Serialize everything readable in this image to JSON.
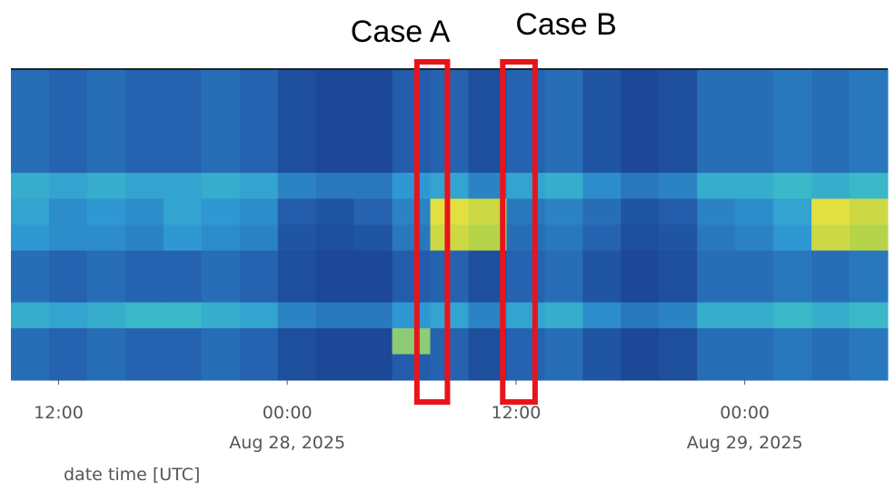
{
  "chart_data": {
    "type": "heatmap",
    "xlabel": "date time [UTC]",
    "xlim": [
      -14.5,
      31.5
    ],
    "xticks": [
      {
        "value": -12,
        "label": [
          "12:00"
        ]
      },
      {
        "value": 0,
        "label": [
          "00:00",
          "Aug 28, 2025"
        ]
      },
      {
        "value": 12,
        "label": [
          "12:00"
        ]
      },
      {
        "value": 24,
        "label": [
          "00:00",
          "Aug 29, 2025"
        ]
      }
    ],
    "xbins": [
      -14.5,
      -12.5,
      -10.5,
      -8.5,
      -6.5,
      -4.5,
      -2.5,
      -0.5,
      1.5,
      3.5,
      5.5,
      7.5,
      9.5,
      11.5,
      13.5,
      15.5,
      17.5,
      19.5,
      21.5,
      23.5,
      25.5,
      27.5,
      29.5,
      31.5
    ],
    "z": [
      [
        0.35,
        0.3,
        0.35,
        0.3,
        0.3,
        0.35,
        0.3,
        0.15,
        0.1,
        0.1,
        0.25,
        0.3,
        0.15,
        0.3,
        0.35,
        0.2,
        0.1,
        0.15,
        0.35,
        0.35,
        0.4,
        0.35,
        0.4
      ],
      [
        0.35,
        0.3,
        0.35,
        0.3,
        0.3,
        0.35,
        0.3,
        0.15,
        0.1,
        0.1,
        0.25,
        0.3,
        0.15,
        0.3,
        0.35,
        0.2,
        0.1,
        0.15,
        0.35,
        0.35,
        0.4,
        0.35,
        0.4
      ],
      [
        0.35,
        0.3,
        0.35,
        0.3,
        0.3,
        0.35,
        0.3,
        0.15,
        0.1,
        0.1,
        0.25,
        0.3,
        0.15,
        0.3,
        0.35,
        0.2,
        0.1,
        0.15,
        0.35,
        0.35,
        0.4,
        0.35,
        0.4
      ],
      [
        0.35,
        0.3,
        0.35,
        0.3,
        0.3,
        0.35,
        0.3,
        0.15,
        0.1,
        0.1,
        0.25,
        0.3,
        0.15,
        0.3,
        0.35,
        0.2,
        0.1,
        0.15,
        0.35,
        0.35,
        0.4,
        0.35,
        0.4
      ],
      [
        0.65,
        0.6,
        0.65,
        0.6,
        0.6,
        0.65,
        0.6,
        0.45,
        0.4,
        0.4,
        0.55,
        0.6,
        0.45,
        0.6,
        0.65,
        0.5,
        0.4,
        0.45,
        0.65,
        0.65,
        0.7,
        0.65,
        0.7
      ],
      [
        0.6,
        0.5,
        0.55,
        0.5,
        0.6,
        0.55,
        0.5,
        0.25,
        0.2,
        0.3,
        0.45,
        0.95,
        0.9,
        0.4,
        0.45,
        0.35,
        0.2,
        0.25,
        0.45,
        0.5,
        0.6,
        0.95,
        0.9
      ],
      [
        0.55,
        0.5,
        0.5,
        0.45,
        0.55,
        0.5,
        0.45,
        0.2,
        0.15,
        0.2,
        0.4,
        0.9,
        0.85,
        0.35,
        0.4,
        0.3,
        0.15,
        0.2,
        0.4,
        0.45,
        0.55,
        0.9,
        0.85
      ],
      [
        0.35,
        0.3,
        0.35,
        0.3,
        0.3,
        0.35,
        0.3,
        0.15,
        0.1,
        0.1,
        0.25,
        0.3,
        0.15,
        0.3,
        0.35,
        0.2,
        0.1,
        0.15,
        0.35,
        0.35,
        0.4,
        0.35,
        0.4
      ],
      [
        0.35,
        0.3,
        0.35,
        0.3,
        0.3,
        0.35,
        0.3,
        0.15,
        0.1,
        0.1,
        0.25,
        0.3,
        0.15,
        0.3,
        0.35,
        0.2,
        0.1,
        0.15,
        0.35,
        0.35,
        0.4,
        0.35,
        0.4
      ],
      [
        0.65,
        0.6,
        0.65,
        0.7,
        0.7,
        0.65,
        0.6,
        0.45,
        0.4,
        0.4,
        0.55,
        0.6,
        0.45,
        0.6,
        0.65,
        0.5,
        0.4,
        0.45,
        0.65,
        0.65,
        0.7,
        0.65,
        0.7
      ],
      [
        0.35,
        0.3,
        0.35,
        0.3,
        0.3,
        0.35,
        0.3,
        0.15,
        0.1,
        0.1,
        0.8,
        0.3,
        0.15,
        0.3,
        0.35,
        0.2,
        0.1,
        0.15,
        0.35,
        0.35,
        0.4,
        0.35,
        0.4
      ],
      [
        0.35,
        0.3,
        0.35,
        0.3,
        0.3,
        0.35,
        0.3,
        0.15,
        0.1,
        0.1,
        0.25,
        0.3,
        0.15,
        0.3,
        0.35,
        0.2,
        0.1,
        0.15,
        0.35,
        0.35,
        0.4,
        0.35,
        0.4
      ]
    ],
    "annotations": [
      {
        "text": "Case A",
        "x": [
          6.8,
          8.4
        ],
        "color": "#e8141c"
      },
      {
        "text": "Case B",
        "x": [
          11.3,
          13.0
        ],
        "color": "#e8141c"
      }
    ]
  }
}
